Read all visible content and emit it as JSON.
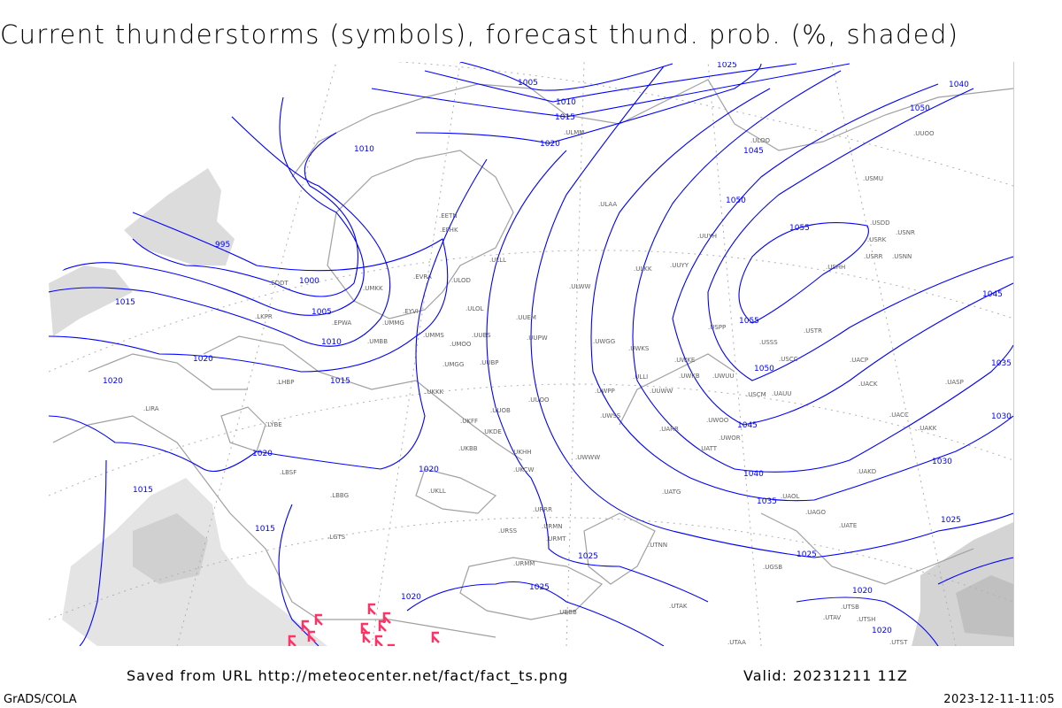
{
  "title": "Current thunderstorms (symbols), forecast thund. prob. (%, shaded)",
  "footer": {
    "saved_from": "Saved from URL http://meteocenter.net/fact/fact_ts.png",
    "valid": "Valid: 20231211 11Z",
    "software": "GrADS/COLA",
    "timestamp": "2023-12-11-11:05"
  },
  "colors": {
    "isobar": "#0000ff",
    "coastline": "#a0a0a0",
    "grid": "#a0a0a0",
    "probability_shading": "#d8d8d8",
    "thunderstorm_symbol": "#ff3366",
    "station_label": "#606060"
  },
  "isobar_labels": [
    "1005",
    "1010",
    "1015",
    "1020",
    "1025",
    "1040",
    "1050",
    "1045",
    "1050",
    "1055",
    "1055",
    "1050",
    "1045",
    "1045",
    "1040",
    "1035",
    "1030",
    "1025",
    "1025",
    "1020",
    "1020",
    "1025",
    "1025",
    "1020",
    "1020",
    "1020",
    "1015",
    "1015",
    "1020",
    "1020",
    "1015",
    "995",
    "1000",
    "1005",
    "1010",
    "1015",
    "1010",
    "1030",
    "1035"
  ],
  "stations": [
    "ULOO",
    "USMU",
    "USDD",
    "USRK",
    "USNR",
    "USRR",
    "USNN",
    "USHH",
    "ULAA",
    "UUYH",
    "ULKK",
    "UUYY",
    "USPP",
    "USSS",
    "USTR",
    "ULWW",
    "UUEM",
    "UUPW",
    "UWGG",
    "UWKS",
    "UWKE",
    "UWKB",
    "UWUU",
    "ULLI",
    "UUWW",
    "UWPP",
    "UWSS",
    "UUOO",
    "UWWW",
    "UARR",
    "UWOO",
    "UWOR",
    "UATT",
    "USCM",
    "UAUU",
    "USCC",
    "UACP",
    "UACK",
    "UASP",
    "UACC",
    "UAKK",
    "UAKD",
    "UATG",
    "UAOL",
    "UAGO",
    "UATE",
    "UTNN",
    "UGSB",
    "URMM",
    "URMN",
    "URMT",
    "URRR",
    "UKCW",
    "UKHH",
    "UKDE",
    "UKBB",
    "UKFF",
    "UKLL",
    "UKKK",
    "UMMS",
    "UMGG",
    "UMOO",
    "UUBP",
    "UUBS",
    "ULOL",
    "ULOD",
    "EVRA",
    "UMKK",
    "EYVI",
    "UMMG",
    "UMBB",
    "EPWA",
    "EDDT",
    "LKPR",
    "LHBP",
    "LIRA",
    "LYBE",
    "LBSF",
    "LBBG",
    "LGTS",
    "URSS",
    "UBBB",
    "UTAK",
    "UTSB",
    "UTAV",
    "UTSH",
    "UTST",
    "UTAA",
    "EFHK",
    "EETN",
    "ULLL",
    "ULMM",
    "UUOB",
    "UUOO"
  ]
}
